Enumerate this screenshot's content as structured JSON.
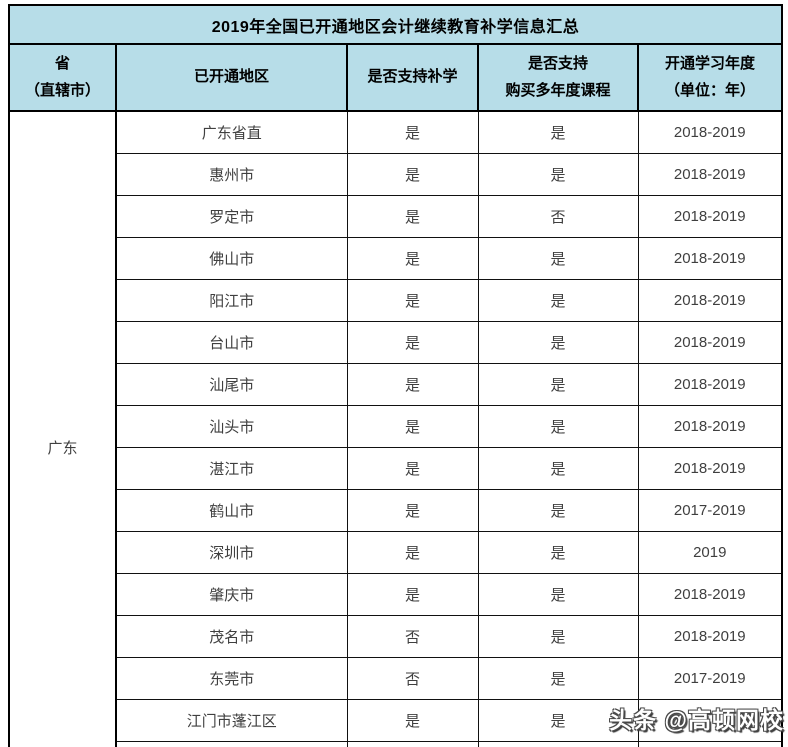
{
  "table": {
    "title": "2019年全国已开通地区会计继续教育补学信息汇总",
    "columns": [
      "省\n（直辖市）",
      "已开通地区",
      "是否支持补学",
      "是否支持\n购买多年度课程",
      "开通学习年度\n（单位：年）"
    ],
    "province": "广东",
    "rows": [
      {
        "region": "广东省直",
        "makeup": "是",
        "multi_year": "是",
        "years": "2018-2019"
      },
      {
        "region": "惠州市",
        "makeup": "是",
        "multi_year": "是",
        "years": "2018-2019"
      },
      {
        "region": "罗定市",
        "makeup": "是",
        "multi_year": "否",
        "years": "2018-2019"
      },
      {
        "region": "佛山市",
        "makeup": "是",
        "multi_year": "是",
        "years": "2018-2019"
      },
      {
        "region": "阳江市",
        "makeup": "是",
        "multi_year": "是",
        "years": "2018-2019"
      },
      {
        "region": "台山市",
        "makeup": "是",
        "multi_year": "是",
        "years": "2018-2019"
      },
      {
        "region": "汕尾市",
        "makeup": "是",
        "multi_year": "是",
        "years": "2018-2019"
      },
      {
        "region": "汕头市",
        "makeup": "是",
        "multi_year": "是",
        "years": "2018-2019"
      },
      {
        "region": "湛江市",
        "makeup": "是",
        "multi_year": "是",
        "years": "2018-2019"
      },
      {
        "region": "鹤山市",
        "makeup": "是",
        "multi_year": "是",
        "years": "2017-2019"
      },
      {
        "region": "深圳市",
        "makeup": "是",
        "multi_year": "是",
        "years": "2019"
      },
      {
        "region": "肇庆市",
        "makeup": "是",
        "multi_year": "是",
        "years": "2018-2019"
      },
      {
        "region": "茂名市",
        "makeup": "否",
        "multi_year": "是",
        "years": "2018-2019"
      },
      {
        "region": "东莞市",
        "makeup": "否",
        "multi_year": "是",
        "years": "2017-2019"
      },
      {
        "region": "江门市蓬江区",
        "makeup": "是",
        "multi_year": "是",
        "years": ""
      }
    ]
  },
  "watermark": {
    "text": "头条 @高顿网校"
  },
  "colors": {
    "header_bg": "#b7dde8",
    "border": "#000000",
    "body_text": "#3f3f3f",
    "page_bg": "#ffffff"
  }
}
